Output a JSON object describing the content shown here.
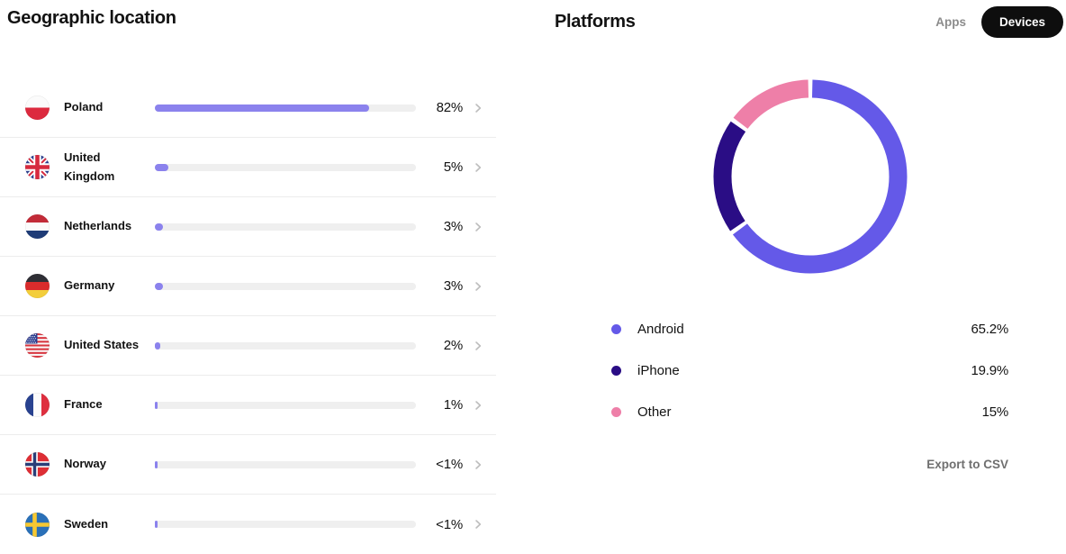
{
  "geographic": {
    "title": "Geographic location",
    "bar_color": "#8B82ED",
    "track_color": "#EFEFEF",
    "countries": [
      {
        "name": "Poland",
        "flag": "pl",
        "pct": 82,
        "pct_label": "82%"
      },
      {
        "name": "United Kingdom",
        "flag": "gb",
        "pct": 5,
        "pct_label": "5%"
      },
      {
        "name": "Netherlands",
        "flag": "nl",
        "pct": 3,
        "pct_label": "3%"
      },
      {
        "name": "Germany",
        "flag": "de",
        "pct": 3,
        "pct_label": "3%"
      },
      {
        "name": "United States",
        "flag": "us",
        "pct": 2,
        "pct_label": "2%"
      },
      {
        "name": "France",
        "flag": "fr",
        "pct": 1,
        "pct_label": "1%"
      },
      {
        "name": "Norway",
        "flag": "no",
        "pct": 0.5,
        "pct_label": "<1%"
      },
      {
        "name": "Sweden",
        "flag": "se",
        "pct": 0.5,
        "pct_label": "<1%"
      }
    ]
  },
  "platforms": {
    "title": "Platforms",
    "toggle": {
      "apps_label": "Apps",
      "devices_label": "Devices",
      "selected": "Devices"
    },
    "export_label": "Export to CSV"
  },
  "chart_data": {
    "type": "pie",
    "title": "Platforms",
    "donut": true,
    "start_angle_deg": 0,
    "direction": "clockwise",
    "legend_position": "bottom-left",
    "series": [
      {
        "name": "Android",
        "value_pct": 65.2,
        "label": "65.2%",
        "color": "#6459E8"
      },
      {
        "name": "iPhone",
        "value_pct": 19.9,
        "label": "19.9%",
        "color": "#2A0D85"
      },
      {
        "name": "Other",
        "value_pct": 15,
        "label": "15%",
        "color": "#EE7FA8"
      }
    ]
  }
}
